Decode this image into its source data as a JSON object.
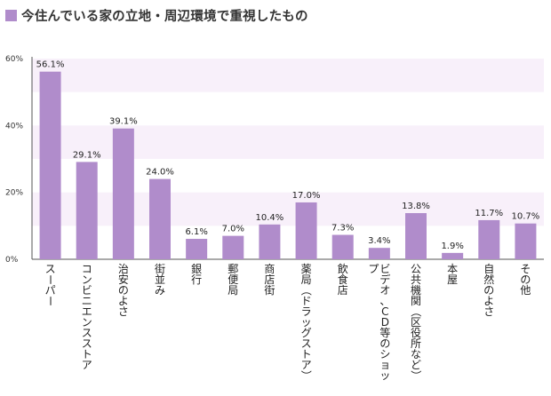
{
  "header": {
    "title": "今住んでいる家の立地・周辺環境で重視したもの"
  },
  "colors": {
    "bar": "#b08ccb",
    "band": "#f8f0fa",
    "axis": "#555555",
    "title_marker": "#b08ccb"
  },
  "chart_data": {
    "type": "bar",
    "title": "今住んでいる家の立地・周辺環境で重視したもの",
    "xlabel": "",
    "ylabel": "",
    "ylim": [
      0,
      60
    ],
    "yticks": [
      "0%",
      "20%",
      "40%",
      "60%"
    ],
    "categories": [
      "スーパー",
      "コンビニエンスストア",
      "治安のよさ",
      "街並み",
      "銀行",
      "郵便局",
      "商店街",
      "薬局（ドラッグストア）",
      "飲食店",
      "ビデオ、CD等のショップ",
      "公共機関（区役所など）",
      "本屋",
      "自然のよさ",
      "その他"
    ],
    "values": [
      56.1,
      29.1,
      39.1,
      24.0,
      6.1,
      7.0,
      10.4,
      17.0,
      7.3,
      3.4,
      13.8,
      1.9,
      11.7,
      10.7
    ],
    "value_labels": [
      "56.1%",
      "29.1%",
      "39.1%",
      "24.0%",
      "6.1%",
      "7.0%",
      "10.4%",
      "17.0%",
      "7.3%",
      "3.4%",
      "13.8%",
      "1.9%",
      "11.7%",
      "10.7%"
    ]
  }
}
